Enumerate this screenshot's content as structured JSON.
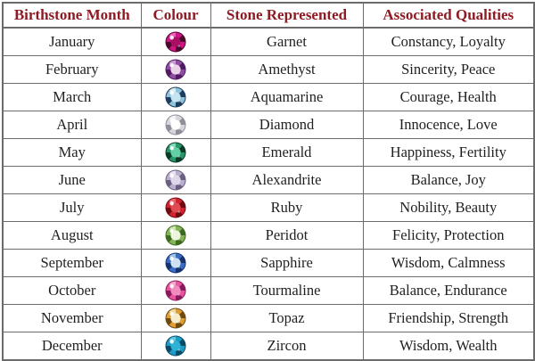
{
  "table": {
    "headers": [
      "Birthstone Month",
      "Colour",
      "Stone Represented",
      "Associated Qualities"
    ],
    "header_text_color": "#8e1b23",
    "body_text_color": "#1f1f1f",
    "border_color": "#6b6b6b",
    "rows": [
      {
        "month": "January",
        "stone": "Garnet",
        "qualities": "Constancy, Loyalty",
        "gem": {
          "name": "garnet-gem-icon",
          "dark": "#4a0a2e",
          "mid": "#cf1486",
          "light": "#f25cb8",
          "table": "#a80f63"
        }
      },
      {
        "month": "February",
        "stone": "Amethyst",
        "qualities": "Sincerity, Peace",
        "gem": {
          "name": "amethyst-gem-icon",
          "dark": "#4f1b62",
          "mid": "#8e4da0",
          "light": "#c99ed3",
          "table": "#ecd2e8"
        }
      },
      {
        "month": "March",
        "stone": "Aquamarine",
        "qualities": "Courage, Health",
        "gem": {
          "name": "aquamarine-gem-icon",
          "dark": "#1e3c5e",
          "mid": "#8ec3dd",
          "light": "#d8eef6",
          "table": "#c3e4f0"
        }
      },
      {
        "month": "April",
        "stone": "Diamond",
        "qualities": "Innocence, Love",
        "gem": {
          "name": "diamond-gem-icon",
          "dark": "#8f8f99",
          "mid": "#d5d5db",
          "light": "#f5f5f8",
          "table": "#ffffff"
        }
      },
      {
        "month": "May",
        "stone": "Emerald",
        "qualities": "Happiness, Fertility",
        "gem": {
          "name": "emerald-gem-icon",
          "dark": "#0b3b28",
          "mid": "#27966b",
          "light": "#79dcb4",
          "table": "#63cfa4"
        }
      },
      {
        "month": "June",
        "stone": "Alexandrite",
        "qualities": "Balance, Joy",
        "gem": {
          "name": "alexandrite-gem-icon",
          "dark": "#6a5f80",
          "mid": "#b9aecd",
          "light": "#e8e2f2",
          "table": "#ded8ea"
        }
      },
      {
        "month": "July",
        "stone": "Ruby",
        "qualities": "Nobility, Beauty",
        "gem": {
          "name": "ruby-gem-icon",
          "dark": "#6e0b12",
          "mid": "#cf2430",
          "light": "#f0646d",
          "table": "#e04a52"
        }
      },
      {
        "month": "August",
        "stone": "Peridot",
        "qualities": "Felicity, Protection",
        "gem": {
          "name": "peridot-gem-icon",
          "dark": "#3c6b1f",
          "mid": "#85b357",
          "light": "#cfe6ae",
          "table": "#eef5dd"
        }
      },
      {
        "month": "September",
        "stone": "Sapphire",
        "qualities": "Wisdom, Calmness",
        "gem": {
          "name": "sapphire-gem-icon",
          "dark": "#16336e",
          "mid": "#3b6cc3",
          "light": "#9cc3ea",
          "table": "#cfe2f4"
        }
      },
      {
        "month": "October",
        "stone": "Tourmaline",
        "qualities": "Balance, Endurance",
        "gem": {
          "name": "tourmaline-gem-icon",
          "dark": "#87195c",
          "mid": "#e8549e",
          "light": "#f7a6cd",
          "table": "#f28cbf"
        }
      },
      {
        "month": "November",
        "stone": "Topaz",
        "qualities": "Friendship, Strength",
        "gem": {
          "name": "topaz-gem-icon",
          "dark": "#6e4a10",
          "mid": "#dd9f35",
          "light": "#f3dc9e",
          "table": "#f7eccb"
        }
      },
      {
        "month": "December",
        "stone": "Zircon",
        "qualities": "Wisdom, Wealth",
        "gem": {
          "name": "zircon-gem-icon",
          "dark": "#0a4a66",
          "mid": "#1f9cc6",
          "light": "#5cc8e4",
          "table": "#2fb3d4"
        }
      }
    ]
  }
}
